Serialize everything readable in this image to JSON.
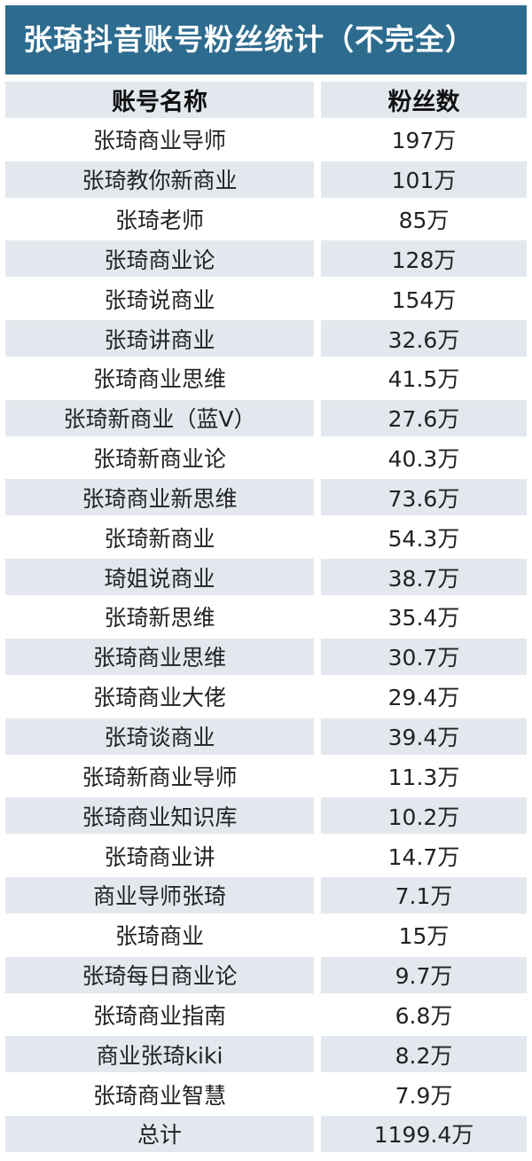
{
  "title": "张琦抖音账号粉丝统计（不完全）",
  "headers": [
    "账号名称",
    "粉丝数"
  ],
  "rows": [
    [
      "张琦商业导师",
      "197万"
    ],
    [
      "张琦教你新商业",
      "101万"
    ],
    [
      "张琦老师",
      "85万"
    ],
    [
      "张琦商业论",
      "128万"
    ],
    [
      "张琦说商业",
      "154万"
    ],
    [
      "张琦讲商业",
      "32.6万"
    ],
    [
      "张琦商业思维",
      "41.5万"
    ],
    [
      "张琦新商业（蓝V）",
      "27.6万"
    ],
    [
      "张琦新商业论",
      "40.3万"
    ],
    [
      "张琦商业新思维",
      "73.6万"
    ],
    [
      "张琦新商业",
      "54.3万"
    ],
    [
      "琦姐说商业",
      "38.7万"
    ],
    [
      "张琦新思维",
      "35.4万"
    ],
    [
      "张琦商业思维",
      "30.7万"
    ],
    [
      "张琦商业大佬",
      "29.4万"
    ],
    [
      "张琦谈商业",
      "39.4万"
    ],
    [
      "张琦新商业导师",
      "11.3万"
    ],
    [
      "张琦商业知识库",
      "10.2万"
    ],
    [
      "张琦商业讲",
      "14.7万"
    ],
    [
      "商业导师张琦",
      "7.1万"
    ],
    [
      "张琦商业",
      "15万"
    ],
    [
      "张琦每日商业论",
      "9.7万"
    ],
    [
      "张琦商业指南",
      "6.8万"
    ],
    [
      "商业张琦kiki",
      "8.2万"
    ],
    [
      "张琦商业智慧",
      "7.9万"
    ]
  ],
  "total": [
    "总计",
    "1199.4万"
  ],
  "colors": {
    "title_bg": "#2d6b8f",
    "row_shade": "#e3e8ee"
  }
}
